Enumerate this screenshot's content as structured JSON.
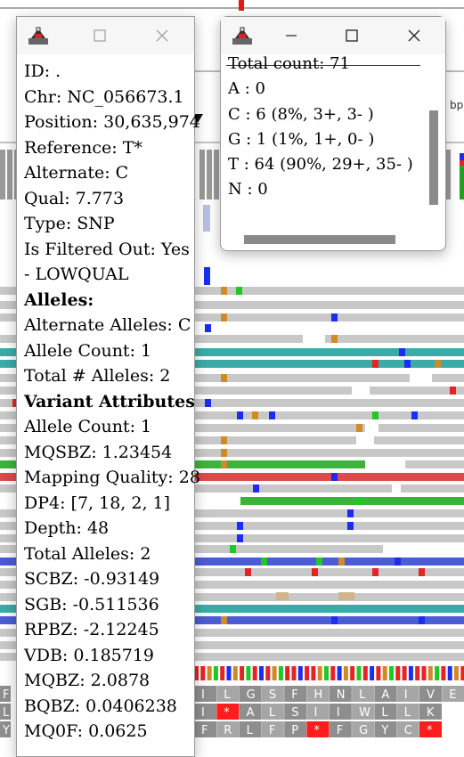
{
  "background": {
    "header_marker": "bp",
    "sequence_letters_rows": [
      [
        "I",
        "L",
        "G",
        "S",
        "F",
        "H",
        "N",
        "L",
        "A",
        "I",
        "V",
        "E"
      ],
      [
        "I",
        "*",
        "A",
        "L",
        "S",
        "I",
        "I",
        "W",
        "L",
        "L",
        "K"
      ],
      [
        "F",
        "R",
        "L",
        "F",
        "P",
        "*",
        "F",
        "G",
        "Y",
        "C",
        "*"
      ]
    ],
    "left_edge_letters": [
      "F",
      "L",
      "Y"
    ]
  },
  "variant_popup": {
    "controls": {
      "maximize": "maximize-icon",
      "close": "close-icon"
    },
    "lines": [
      {
        "text": "ID: .",
        "bold": false
      },
      {
        "text": "Chr: NC_056673.1",
        "bold": false
      },
      {
        "text": "Position: 30,635,974",
        "bold": false
      },
      {
        "text": "Reference: T*",
        "bold": false
      },
      {
        "text": "Alternate: C",
        "bold": false
      },
      {
        "text": "Qual: 7.773",
        "bold": false
      },
      {
        "text": "Type: SNP",
        "bold": false
      },
      {
        "text": "Is Filtered Out: Yes",
        "bold": false
      },
      {
        "text": "- LOWQUAL",
        "bold": false
      },
      {
        "text": "Alleles:",
        "bold": true
      },
      {
        "text": "Alternate Alleles: C",
        "bold": false
      },
      {
        "text": "Allele Count: 1",
        "bold": false
      },
      {
        "text": "Total # Alleles: 2",
        "bold": false
      },
      {
        "text": "Variant Attributes",
        "bold": true
      },
      {
        "text": "Allele Count: 1",
        "bold": false
      },
      {
        "text": "MQSBZ: 1.23454",
        "bold": false
      },
      {
        "text": "Mapping Quality: 28",
        "bold": false
      },
      {
        "text": "DP4: [7, 18, 2, 1]",
        "bold": false
      },
      {
        "text": "Depth: 48",
        "bold": false
      },
      {
        "text": "Total Alleles: 2",
        "bold": false
      },
      {
        "text": "SCBZ: -0.93149",
        "bold": false
      },
      {
        "text": "SGB: -0.511536",
        "bold": false
      },
      {
        "text": "RPBZ: -2.12245",
        "bold": false
      },
      {
        "text": "VDB: 0.185719",
        "bold": false
      },
      {
        "text": "MQBZ: 2.0878",
        "bold": false
      },
      {
        "text": "BQBZ: 0.0406238",
        "bold": false
      },
      {
        "text": "MQ0F: 0.0625",
        "bold": false
      }
    ]
  },
  "coverage_popup": {
    "controls": {
      "minimize": "minimize-icon",
      "maximize": "maximize-icon",
      "close": "close-icon"
    },
    "lines": [
      "Total count: 71",
      "A : 0",
      "C : 6 (8%, 3+, 3- )",
      "G : 1 (1%, 1+, 0- )",
      "T : 64 (90%, 29+, 35- )",
      "N : 0"
    ]
  },
  "colors": {
    "read_gray": "#c8c8c8",
    "teal_read": "#3aaca8",
    "green_read": "#3cb43c",
    "red_read": "#e0484a",
    "blue_read": "#4c5cd4",
    "base_C": "#1c2cf0",
    "base_G": "#d08a28",
    "base_T": "#e42424",
    "base_A": "#22c822",
    "amino_gray": "#8e8e8e",
    "amino_stop": "#ff1c1c"
  }
}
